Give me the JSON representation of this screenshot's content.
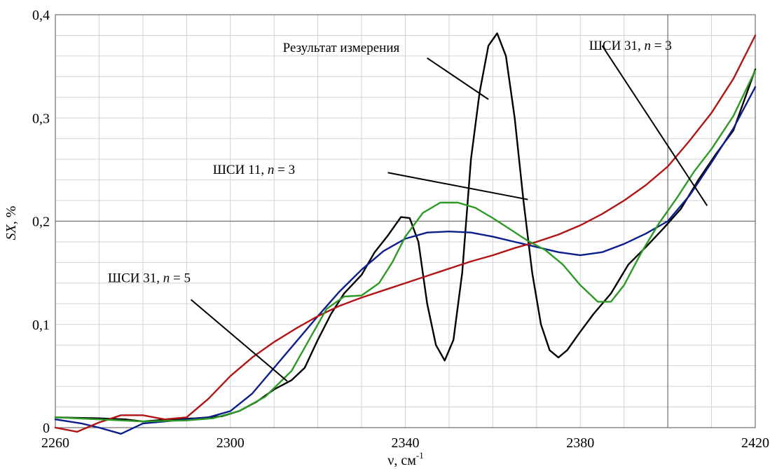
{
  "chart_data": {
    "type": "line",
    "title": "",
    "xlabel": "ν, см",
    "xlabel_sup": "-1",
    "ylabel_italic": "SX",
    "ylabel_rest": ", %",
    "xlim": [
      2260,
      2420
    ],
    "ylim": [
      0,
      0.4
    ],
    "x_ticks": [
      2260,
      2300,
      2340,
      2380,
      2420
    ],
    "x_tick_labels": [
      "2260",
      "2300",
      "2340",
      "2380",
      "2420"
    ],
    "y_ticks": [
      0,
      0.1,
      0.2,
      0.3,
      0.4
    ],
    "y_tick_labels": [
      "0",
      "0,1",
      "0,2",
      "0,3",
      "0,4"
    ],
    "grid": true,
    "legend": "none",
    "series": [
      {
        "color": "#000000",
        "points": [
          [
            2260,
            0.01
          ],
          [
            2270,
            0.009
          ],
          [
            2276,
            0.008
          ],
          [
            2280,
            0.006
          ],
          [
            2286,
            0.008
          ],
          [
            2292,
            0.009
          ],
          [
            2298,
            0.011
          ],
          [
            2302,
            0.016
          ],
          [
            2306,
            0.025
          ],
          [
            2310,
            0.037
          ],
          [
            2314,
            0.046
          ],
          [
            2317,
            0.058
          ],
          [
            2320,
            0.085
          ],
          [
            2323,
            0.11
          ],
          [
            2326,
            0.13
          ],
          [
            2330,
            0.148
          ],
          [
            2333,
            0.17
          ],
          [
            2336,
            0.186
          ],
          [
            2339,
            0.204
          ],
          [
            2341,
            0.203
          ],
          [
            2343,
            0.18
          ],
          [
            2345,
            0.12
          ],
          [
            2347,
            0.08
          ],
          [
            2349,
            0.065
          ],
          [
            2351,
            0.085
          ],
          [
            2353,
            0.15
          ],
          [
            2355,
            0.26
          ],
          [
            2357,
            0.325
          ],
          [
            2359,
            0.37
          ],
          [
            2361,
            0.382
          ],
          [
            2363,
            0.36
          ],
          [
            2365,
            0.3
          ],
          [
            2367,
            0.22
          ],
          [
            2369,
            0.15
          ],
          [
            2371,
            0.1
          ],
          [
            2373,
            0.075
          ],
          [
            2375,
            0.068
          ],
          [
            2377,
            0.075
          ],
          [
            2380,
            0.093
          ],
          [
            2383,
            0.11
          ],
          [
            2387,
            0.13
          ],
          [
            2391,
            0.158
          ],
          [
            2395,
            0.175
          ],
          [
            2399,
            0.193
          ],
          [
            2403,
            0.212
          ],
          [
            2407,
            0.24
          ],
          [
            2411,
            0.265
          ],
          [
            2415,
            0.288
          ],
          [
            2420,
            0.347
          ]
        ]
      },
      {
        "name": "ШСИ 31, n = 5",
        "color": "#0b1e8c",
        "points": [
          [
            2260,
            0.008
          ],
          [
            2266,
            0.004
          ],
          [
            2270,
            0.0
          ],
          [
            2275,
            -0.006
          ],
          [
            2280,
            0.004
          ],
          [
            2285,
            0.006
          ],
          [
            2290,
            0.008
          ],
          [
            2295,
            0.01
          ],
          [
            2300,
            0.016
          ],
          [
            2305,
            0.033
          ],
          [
            2310,
            0.058
          ],
          [
            2315,
            0.083
          ],
          [
            2320,
            0.108
          ],
          [
            2325,
            0.132
          ],
          [
            2330,
            0.153
          ],
          [
            2335,
            0.171
          ],
          [
            2340,
            0.183
          ],
          [
            2345,
            0.189
          ],
          [
            2350,
            0.19
          ],
          [
            2355,
            0.189
          ],
          [
            2360,
            0.185
          ],
          [
            2365,
            0.18
          ],
          [
            2370,
            0.175
          ],
          [
            2375,
            0.17
          ],
          [
            2380,
            0.167
          ],
          [
            2385,
            0.17
          ],
          [
            2390,
            0.178
          ],
          [
            2395,
            0.188
          ],
          [
            2400,
            0.2
          ],
          [
            2405,
            0.225
          ],
          [
            2410,
            0.257
          ],
          [
            2415,
            0.29
          ],
          [
            2420,
            0.33
          ]
        ]
      },
      {
        "name": "ШСИ 31, n = 3",
        "color": "#b01515",
        "points": [
          [
            2260,
            0.0
          ],
          [
            2265,
            -0.004
          ],
          [
            2270,
            0.005
          ],
          [
            2275,
            0.012
          ],
          [
            2280,
            0.012
          ],
          [
            2285,
            0.008
          ],
          [
            2290,
            0.01
          ],
          [
            2295,
            0.028
          ],
          [
            2300,
            0.05
          ],
          [
            2305,
            0.068
          ],
          [
            2310,
            0.083
          ],
          [
            2315,
            0.096
          ],
          [
            2320,
            0.108
          ],
          [
            2325,
            0.118
          ],
          [
            2330,
            0.126
          ],
          [
            2335,
            0.133
          ],
          [
            2340,
            0.14
          ],
          [
            2345,
            0.147
          ],
          [
            2350,
            0.154
          ],
          [
            2355,
            0.161
          ],
          [
            2360,
            0.167
          ],
          [
            2365,
            0.174
          ],
          [
            2370,
            0.18
          ],
          [
            2375,
            0.187
          ],
          [
            2380,
            0.196
          ],
          [
            2385,
            0.207
          ],
          [
            2390,
            0.22
          ],
          [
            2395,
            0.235
          ],
          [
            2400,
            0.253
          ],
          [
            2405,
            0.278
          ],
          [
            2410,
            0.305
          ],
          [
            2415,
            0.338
          ],
          [
            2420,
            0.38
          ]
        ]
      },
      {
        "name": "ШСИ 11, n = 3",
        "color": "#2c9a24",
        "points": [
          [
            2260,
            0.01
          ],
          [
            2270,
            0.008
          ],
          [
            2280,
            0.006
          ],
          [
            2290,
            0.007
          ],
          [
            2296,
            0.009
          ],
          [
            2302,
            0.016
          ],
          [
            2308,
            0.03
          ],
          [
            2314,
            0.055
          ],
          [
            2318,
            0.085
          ],
          [
            2322,
            0.115
          ],
          [
            2326,
            0.127
          ],
          [
            2330,
            0.128
          ],
          [
            2334,
            0.14
          ],
          [
            2337,
            0.16
          ],
          [
            2340,
            0.185
          ],
          [
            2344,
            0.208
          ],
          [
            2348,
            0.218
          ],
          [
            2352,
            0.218
          ],
          [
            2356,
            0.213
          ],
          [
            2360,
            0.203
          ],
          [
            2364,
            0.192
          ],
          [
            2368,
            0.181
          ],
          [
            2372,
            0.172
          ],
          [
            2376,
            0.158
          ],
          [
            2380,
            0.138
          ],
          [
            2384,
            0.122
          ],
          [
            2387,
            0.122
          ],
          [
            2390,
            0.138
          ],
          [
            2394,
            0.17
          ],
          [
            2398,
            0.198
          ],
          [
            2402,
            0.222
          ],
          [
            2406,
            0.248
          ],
          [
            2410,
            0.27
          ],
          [
            2415,
            0.302
          ],
          [
            2420,
            0.346
          ]
        ]
      }
    ],
    "annotations": [
      {
        "text_before": "Результат измерения",
        "text_italic": "",
        "text_after": "",
        "label_xy": [
          2312,
          0.364
        ],
        "line": [
          [
            2345,
            0.358
          ],
          [
            2359,
            0.318
          ]
        ]
      },
      {
        "text_before": "ШСИ 31, ",
        "text_italic": "n",
        "text_after": " = 3",
        "label_xy": [
          2382,
          0.366
        ],
        "line": [
          [
            2385,
            0.37
          ],
          [
            2409,
            0.215
          ]
        ]
      },
      {
        "text_before": "ШСИ 11, ",
        "text_italic": "n",
        "text_after": " = 3",
        "label_xy": [
          2296,
          0.246
        ],
        "line": [
          [
            2336,
            0.247
          ],
          [
            2368,
            0.221
          ]
        ]
      },
      {
        "text_before": "ШСИ 31, ",
        "text_italic": "n",
        "text_after": " = 5",
        "label_xy": [
          2272,
          0.141
        ],
        "line": [
          [
            2291,
            0.124
          ],
          [
            2313,
            0.045
          ]
        ]
      }
    ]
  }
}
